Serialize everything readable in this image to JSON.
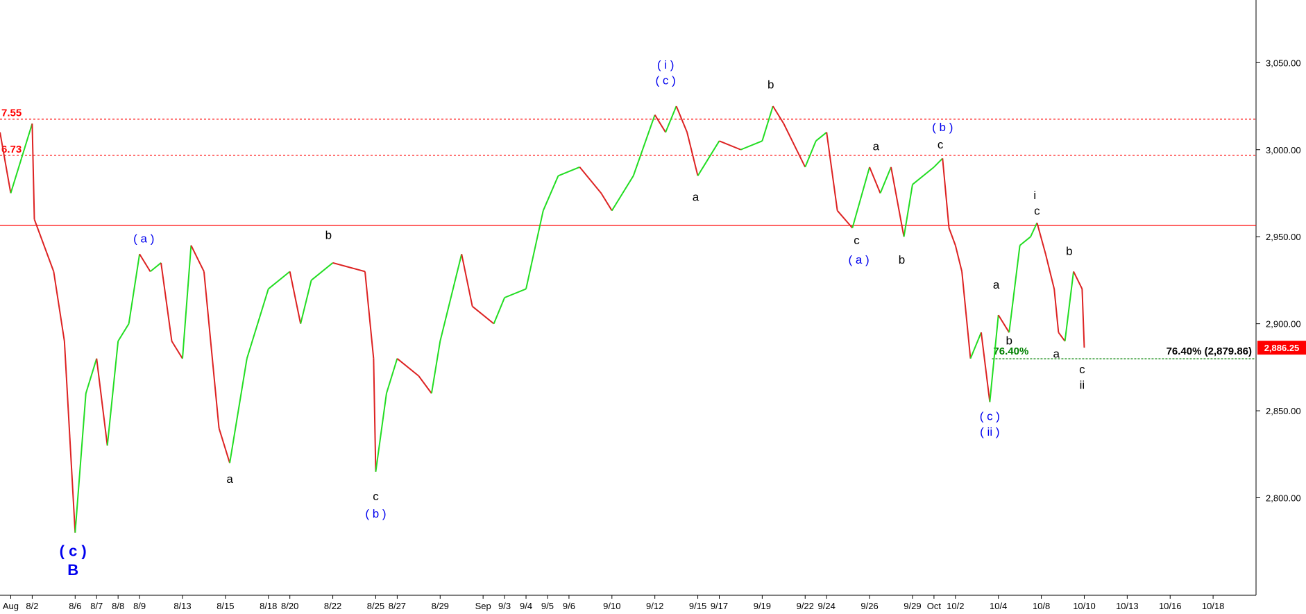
{
  "chart_data": {
    "type": "line",
    "up_color": "#22dd22",
    "down_color": "#dd2222",
    "xlim": [
      -0.5,
      58
    ],
    "ylim": [
      2744,
      3086
    ],
    "xticks": [
      {
        "value": 0,
        "label": "Aug"
      },
      {
        "value": 1,
        "label": "8/2"
      },
      {
        "value": 3,
        "label": "8/6"
      },
      {
        "value": 4,
        "label": "8/7"
      },
      {
        "value": 5,
        "label": "8/8"
      },
      {
        "value": 6,
        "label": "8/9"
      },
      {
        "value": 8,
        "label": "8/13"
      },
      {
        "value": 10,
        "label": "8/15"
      },
      {
        "value": 12,
        "label": "8/18"
      },
      {
        "value": 13,
        "label": "8/20"
      },
      {
        "value": 15,
        "label": "8/22"
      },
      {
        "value": 17,
        "label": "8/25"
      },
      {
        "value": 18,
        "label": "8/27"
      },
      {
        "value": 20,
        "label": "8/29"
      },
      {
        "value": 22,
        "label": "Sep"
      },
      {
        "value": 23,
        "label": "9/3"
      },
      {
        "value": 24,
        "label": "9/4"
      },
      {
        "value": 25,
        "label": "9/5"
      },
      {
        "value": 26,
        "label": "9/6"
      },
      {
        "value": 28,
        "label": "9/10"
      },
      {
        "value": 30,
        "label": "9/12"
      },
      {
        "value": 32,
        "label": "9/15"
      },
      {
        "value": 33,
        "label": "9/17"
      },
      {
        "value": 35,
        "label": "9/19"
      },
      {
        "value": 37,
        "label": "9/22"
      },
      {
        "value": 38,
        "label": "9/24"
      },
      {
        "value": 40,
        "label": "9/26"
      },
      {
        "value": 42,
        "label": "9/29"
      },
      {
        "value": 43,
        "label": "Oct"
      },
      {
        "value": 44,
        "label": "10/2"
      },
      {
        "value": 46,
        "label": "10/4"
      },
      {
        "value": 48,
        "label": "10/8"
      },
      {
        "value": 50,
        "label": "10/10"
      },
      {
        "value": 52,
        "label": "10/13"
      },
      {
        "value": 54,
        "label": "10/16"
      },
      {
        "value": 56,
        "label": "10/18"
      }
    ],
    "yticks": [
      {
        "value": 2800,
        "label": "2,800.00"
      },
      {
        "value": 2850,
        "label": "2,850.00"
      },
      {
        "value": 2900,
        "label": "2,900.00"
      },
      {
        "value": 2950,
        "label": "2,950.00"
      },
      {
        "value": 3000,
        "label": "3,000.00"
      },
      {
        "value": 3050,
        "label": "3,050.00"
      }
    ],
    "x": [
      -0.5,
      0,
      0.5,
      1,
      1.1,
      2,
      2.5,
      3,
      3.5,
      4,
      4.5,
      5,
      5.5,
      6,
      6.5,
      7,
      7.5,
      8,
      8.4,
      9,
      9.7,
      10.2,
      11,
      12,
      13,
      13.5,
      14,
      15,
      16.5,
      16.9,
      17,
      17.5,
      18,
      19,
      19.6,
      20,
      21,
      21.5,
      22,
      22.5,
      23,
      24,
      24.8,
      25.5,
      26.5,
      27.5,
      28,
      29,
      30,
      30.5,
      31,
      31.5,
      32,
      33,
      34,
      35,
      35.5,
      36,
      37,
      37.5,
      38,
      38.5,
      39.2,
      40,
      40.5,
      41,
      41.6,
      42,
      43,
      43.4,
      43.7,
      44,
      44.3,
      44.7,
      45.2,
      45.6,
      46,
      46.5,
      47,
      47.5,
      47.8,
      48.2,
      48.6,
      48.8,
      49.1,
      49.5,
      49.9,
      50
    ],
    "series": [
      {
        "values": [
          3010,
          2975,
          2995,
          3015,
          2960,
          2930,
          2890,
          2780,
          2860,
          2880,
          2830,
          2890,
          2900,
          2940,
          2930,
          2935,
          2890,
          2880,
          2945,
          2930,
          2840,
          2820,
          2880,
          2920,
          2930,
          2900,
          2925,
          2935,
          2930,
          2880,
          2815,
          2860,
          2880,
          2870,
          2860,
          2890,
          2940,
          2910,
          2905,
          2900,
          2915,
          2920,
          2965,
          2985,
          2990,
          2975,
          2965,
          2985,
          3020,
          3010,
          3025,
          3010,
          2985,
          3005,
          3000,
          3005,
          3025,
          3015,
          2990,
          3005,
          3010,
          2965,
          2955,
          2990,
          2975,
          2990,
          2950,
          2980,
          2990,
          2995,
          2955,
          2945,
          2930,
          2880,
          2895,
          2855,
          2905,
          2895,
          2945,
          2950,
          2958,
          2940,
          2920,
          2895,
          2890,
          2930,
          2920,
          2886.25
        ]
      }
    ],
    "levels": [
      {
        "value": 3017.55,
        "label": "7.55",
        "color": "#ff0000",
        "style": "dotted"
      },
      {
        "value": 2996.73,
        "label": "6.73",
        "color": "#ff0000",
        "style": "dotted"
      },
      {
        "value": 2956.6,
        "color": "#ff0000",
        "style": "solid"
      }
    ],
    "retracement": {
      "value": 2879.86,
      "from": 45.7,
      "left_label": "76.40%",
      "right_label": "76.40% (2,879.86)",
      "color": "#008000"
    },
    "last": {
      "value": 2886.25,
      "label": "2,886.25",
      "color": "#ff0000"
    },
    "annotations": [
      {
        "text": "( i )",
        "x": 30.5,
        "y": 3049,
        "color": "#0000ee"
      },
      {
        "text": "( c )",
        "x": 30.5,
        "y": 3040,
        "color": "#0000ee"
      },
      {
        "text": "b",
        "x": 35.4,
        "y": 3037.5,
        "color": "#000000"
      },
      {
        "text": "( b )",
        "x": 43.4,
        "y": 3013,
        "color": "#0000ee"
      },
      {
        "text": "c",
        "x": 43.3,
        "y": 3003,
        "color": "#000000"
      },
      {
        "text": "a",
        "x": 40.3,
        "y": 3002,
        "color": "#000000"
      },
      {
        "text": "a",
        "x": 31.9,
        "y": 2973,
        "color": "#000000"
      },
      {
        "text": "c",
        "x": 39.4,
        "y": 2948,
        "color": "#000000"
      },
      {
        "text": "( a )",
        "x": 39.5,
        "y": 2937,
        "color": "#0000ee"
      },
      {
        "text": "b",
        "x": 41.5,
        "y": 2937,
        "color": "#000000"
      },
      {
        "text": "i",
        "x": 47.7,
        "y": 2974,
        "color": "#000000"
      },
      {
        "text": "c",
        "x": 47.8,
        "y": 2965,
        "color": "#000000"
      },
      {
        "text": "b",
        "x": 49.3,
        "y": 2942,
        "color": "#000000"
      },
      {
        "text": "a",
        "x": 45.9,
        "y": 2922.6,
        "color": "#000000"
      },
      {
        "text": "b",
        "x": 46.5,
        "y": 2890.5,
        "color": "#000000"
      },
      {
        "text": "a",
        "x": 48.7,
        "y": 2883,
        "color": "#000000"
      },
      {
        "text": "c",
        "x": 49.9,
        "y": 2874,
        "color": "#000000"
      },
      {
        "text": "ii",
        "x": 49.9,
        "y": 2865,
        "color": "#000000"
      },
      {
        "text": "( c )",
        "x": 45.6,
        "y": 2847,
        "color": "#0000ee"
      },
      {
        "text": "( ii )",
        "x": 45.6,
        "y": 2838,
        "color": "#0000ee"
      },
      {
        "text": "( a )",
        "x": 6.2,
        "y": 2949,
        "color": "#0000ee"
      },
      {
        "text": "b",
        "x": 14.8,
        "y": 2951,
        "color": "#000000"
      },
      {
        "text": "a",
        "x": 10.2,
        "y": 2811,
        "color": "#000000"
      },
      {
        "text": "c",
        "x": 17.0,
        "y": 2801,
        "color": "#000000"
      },
      {
        "text": "( b )",
        "x": 17.0,
        "y": 2791,
        "color": "#0000ee"
      },
      {
        "text": "( c )",
        "x": 2.9,
        "y": 2769,
        "color": "#0000ee",
        "size": "large"
      },
      {
        "text": "B",
        "x": 2.9,
        "y": 2758,
        "color": "#0000ee",
        "size": "large"
      }
    ]
  }
}
